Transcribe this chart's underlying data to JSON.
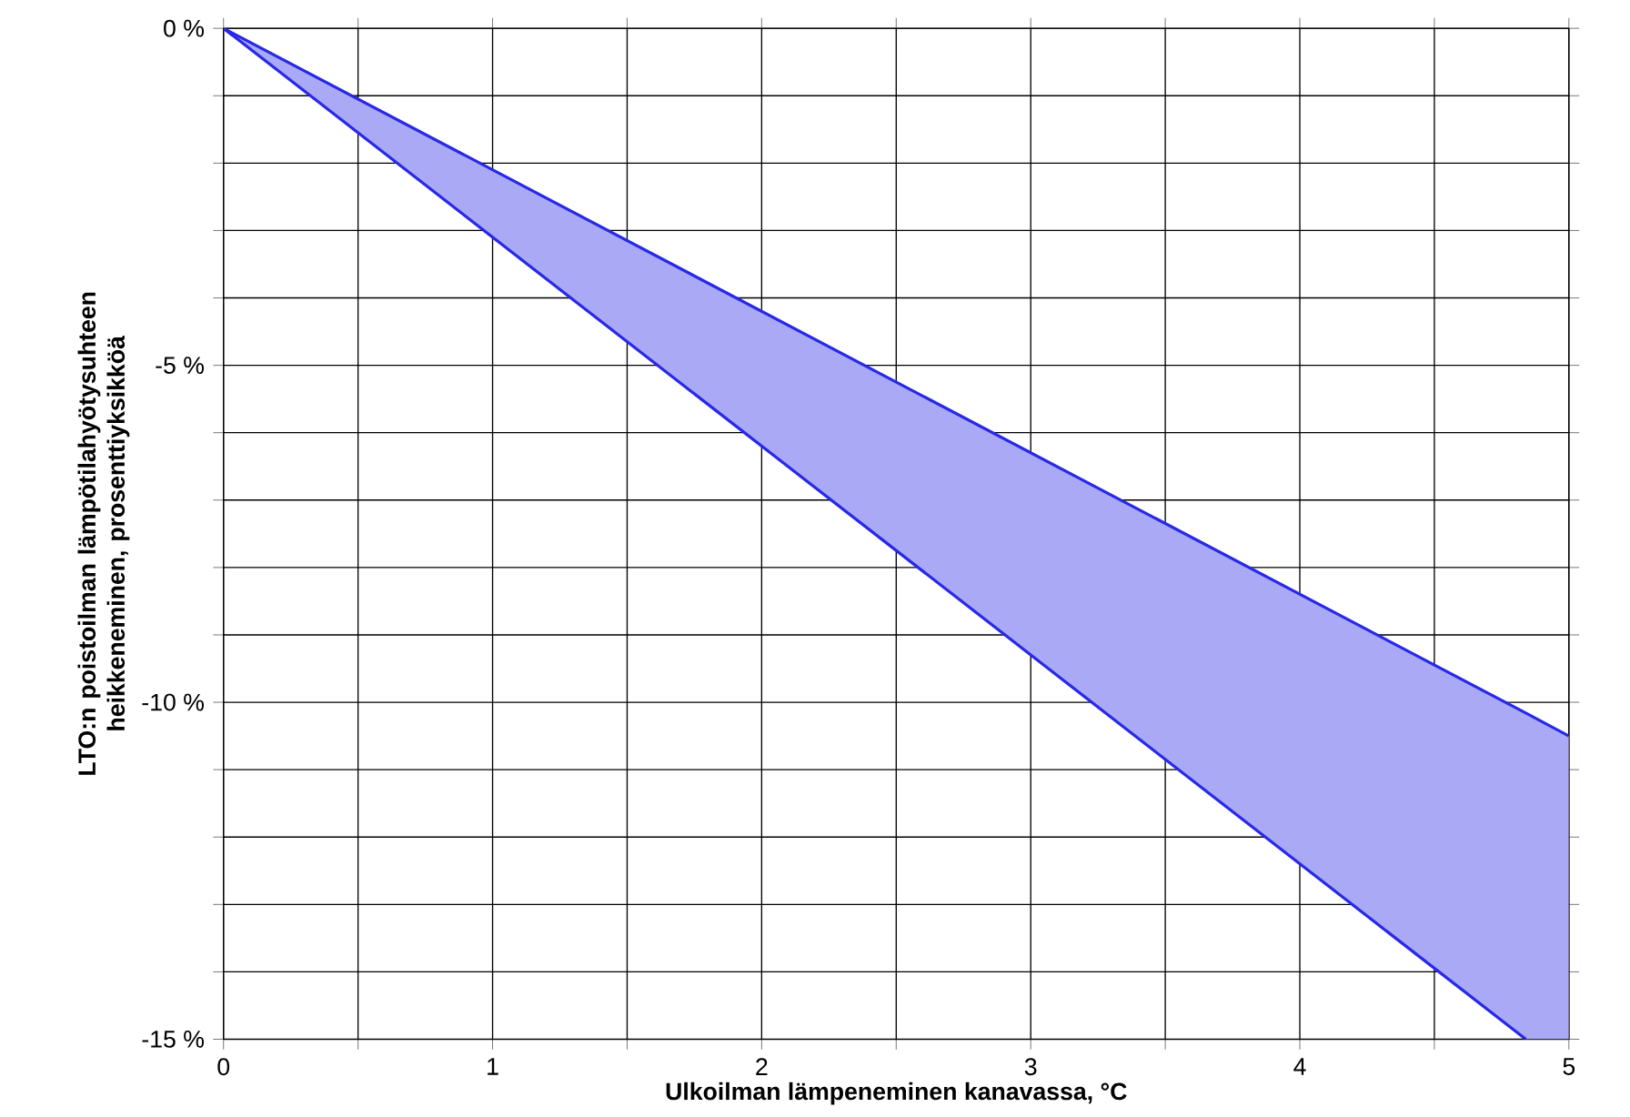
{
  "chart_data": {
    "type": "line",
    "xlabel": "Ulkoilman lämpeneminen kanavassa, °C",
    "ylabel": "LTO:n poistoilman lämpötilahyötysuhteen heikkeneminen, prosenttiyksikköä",
    "series": [
      {
        "color": "#2828e6",
        "x": [
          0,
          4.84,
          5
        ],
        "values": [
          0,
          -10.16,
          -10.5
        ],
        "lower": [
          0,
          -15,
          -15
        ],
        "upper": [
          0,
          -10.16,
          -10.5
        ]
      },
      {
        "color": "#2828e6",
        "x": [
          0,
          4.84
        ],
        "values": [
          0,
          -15
        ]
      }
    ],
    "xlim": [
      0,
      5
    ],
    "ylim": [
      -15,
      0
    ],
    "xticks": [
      0,
      {
        "value": 0.5,
        "label": null
      },
      1,
      {
        "value": 1.5,
        "label": null
      },
      2,
      {
        "value": 2.5,
        "label": null
      },
      3,
      {
        "value": 3.5,
        "label": null
      },
      4,
      {
        "value": 4.5,
        "label": null
      },
      5
    ],
    "yticks": [
      {
        "value": -15,
        "label": "-15 %"
      },
      {
        "value": -14,
        "label": null
      },
      {
        "value": -13,
        "label": null
      },
      {
        "value": -12,
        "label": null
      },
      {
        "value": -11,
        "label": null
      },
      {
        "value": -10,
        "label": "-10 %"
      },
      {
        "value": -9,
        "label": null
      },
      {
        "value": -8,
        "label": null
      },
      {
        "value": -7,
        "label": null
      },
      {
        "value": -6,
        "label": null
      },
      {
        "value": -5,
        "label": "-5 %"
      },
      {
        "value": -4,
        "label": null
      },
      {
        "value": -3,
        "label": null
      },
      {
        "value": -2,
        "label": null
      },
      {
        "value": -1,
        "label": null
      },
      {
        "value": 0,
        "label": "0 %"
      }
    ],
    "grid": true
  }
}
